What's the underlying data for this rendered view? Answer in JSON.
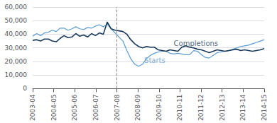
{
  "chart_data": {
    "type": "line",
    "x": [
      0,
      0.186441,
      0.372881,
      0.559322,
      0.745763,
      0.932203,
      1.118644,
      1.305085,
      1.491525,
      1.677966,
      1.864407,
      2.050847,
      2.237288,
      2.423729,
      2.610169,
      2.79661,
      2.983051,
      3.169492,
      3.355932,
      3.542373,
      3.728814,
      3.915254,
      4.101695,
      4.288136,
      4.474576,
      4.661017,
      4.847458,
      5.033898,
      5.220339,
      5.40678,
      5.59322,
      5.779661,
      5.966102,
      6.152542,
      6.338983,
      6.525424,
      6.711864,
      6.898305,
      7.084746,
      7.271186,
      7.457627,
      7.644068,
      7.830508,
      8.016949,
      8.20339,
      8.389831,
      8.576271,
      8.762712,
      8.949153,
      9.135593,
      9.322034,
      9.508475,
      9.694915,
      9.881356,
      10.067797,
      10.254237,
      10.440678,
      10.627119,
      10.813559,
      11
    ],
    "series": [
      {
        "name": "Starts",
        "color": "#5b9bd5",
        "values": [
          38500,
          40500,
          39000,
          41000,
          41500,
          43000,
          42000,
          44500,
          44500,
          43000,
          44000,
          45500,
          44000,
          43500,
          45000,
          44500,
          46000,
          47000,
          45500,
          47500,
          44000,
          41000,
          38000,
          35000,
          28000,
          22000,
          18000,
          16500,
          18000,
          22000,
          24500,
          26000,
          27000,
          27500,
          27500,
          26000,
          25500,
          26000,
          25500,
          25000,
          25000,
          28000,
          27500,
          25000,
          23000,
          22500,
          24500,
          26500,
          27000,
          27500,
          28000,
          29000,
          30000,
          31000,
          31500,
          32000,
          33000,
          34000,
          35000,
          36000
        ]
      },
      {
        "name": "Completions",
        "color": "#1a3a5c",
        "values": [
          35500,
          36000,
          35000,
          36500,
          36500,
          35000,
          34500,
          37000,
          39000,
          37500,
          38000,
          40500,
          38500,
          39500,
          38000,
          40500,
          39000,
          41000,
          40000,
          49000,
          44000,
          43000,
          42500,
          42000,
          40000,
          36000,
          33000,
          31000,
          30000,
          31000,
          30500,
          30500,
          28500,
          28000,
          27500,
          28500,
          28000,
          27500,
          30500,
          31500,
          30500,
          30000,
          29000,
          28500,
          27500,
          26500,
          27500,
          28500,
          28000,
          27500,
          28000,
          28500,
          29000,
          28000,
          28500,
          28000,
          27500,
          28000,
          28500,
          29500
        ]
      }
    ],
    "xlim": [
      0,
      11
    ],
    "xticks": [
      {
        "value": 0,
        "label": "2003-04"
      },
      {
        "value": 1,
        "label": "2004-05"
      },
      {
        "value": 2,
        "label": "2005-06"
      },
      {
        "value": 3,
        "label": "2006-07"
      },
      {
        "value": 4,
        "label": "2007-08"
      },
      {
        "value": 5,
        "label": "2008-09"
      },
      {
        "value": 6,
        "label": "2009-10"
      },
      {
        "value": 7,
        "label": "2010-11"
      },
      {
        "value": 8,
        "label": "2011-12"
      },
      {
        "value": 9,
        "label": "2012-13"
      },
      {
        "value": 10,
        "label": "2013-14"
      },
      {
        "value": 11,
        "label": "2014-15"
      }
    ],
    "ylim": [
      0,
      60000
    ],
    "yticks": [
      0,
      {
        "value": 10000,
        "label": "10,000"
      },
      {
        "value": 20000,
        "label": "20,000"
      },
      {
        "value": 30000,
        "label": "30,000"
      },
      {
        "value": 40000,
        "label": "40,000"
      },
      {
        "value": 50000,
        "label": "50,000"
      },
      {
        "value": 60000,
        "label": "60,000"
      }
    ],
    "grid": true,
    "vlines": [
      {
        "x": 4,
        "line_style": "dashed",
        "color": "#888888"
      }
    ],
    "annotations": [
      {
        "text": "Completions",
        "x": 6.7,
        "y": 33000,
        "color": "#1a3a5c"
      },
      {
        "text": "Starts",
        "x": 5.3,
        "y": 21000,
        "color": "#5b9bd5"
      }
    ]
  }
}
